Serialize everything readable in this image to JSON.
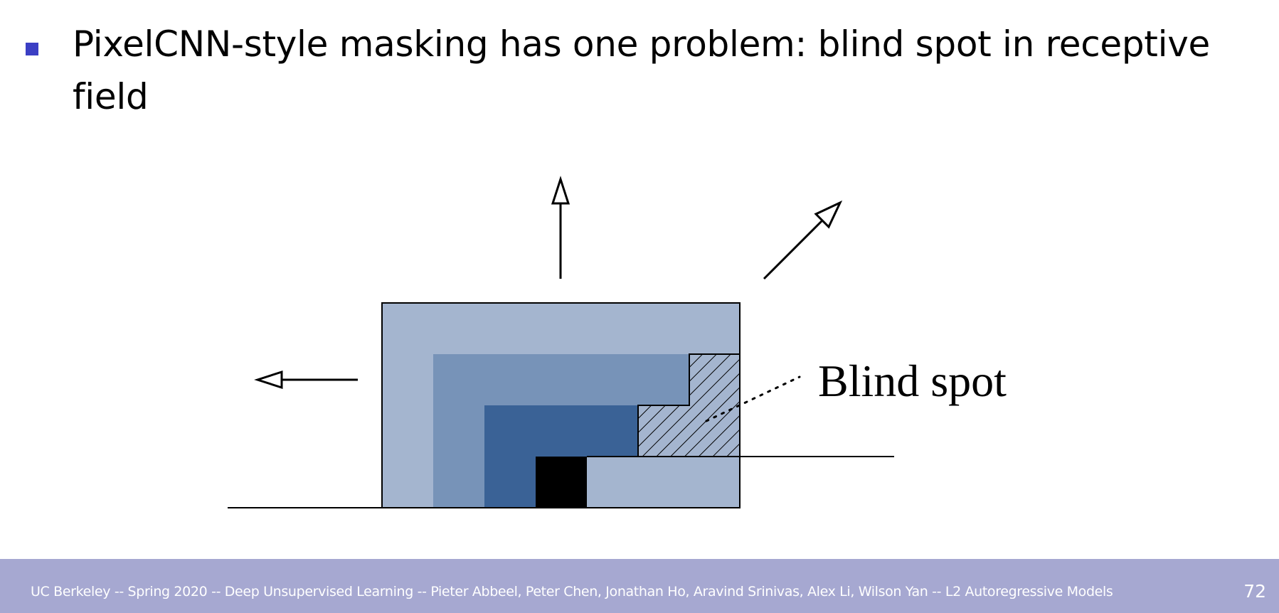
{
  "slide": {
    "bullet": "PixelCNN-style masking has one problem: blind spot in receptive field"
  },
  "diagram": {
    "annotation": "Blind spot",
    "colors": {
      "outer_layer": "#a4b5cf",
      "middle_layer": "#7793b8",
      "inner_layer": "#3a6296",
      "current_pixel": "#000000",
      "bullet": "#3b3fc4",
      "footer_bg": "#a6a8d1"
    },
    "arrows": [
      "left-arrow-icon",
      "up-arrow-icon",
      "diagonal-arrow-icon"
    ]
  },
  "footer": {
    "text": "UC Berkeley -- Spring 2020 -- Deep Unsupervised Learning -- Pieter Abbeel, Peter Chen, Jonathan Ho, Aravind Srinivas, Alex Li, Wilson Yan -- L2 Autoregressive Models",
    "page_number": "72"
  }
}
